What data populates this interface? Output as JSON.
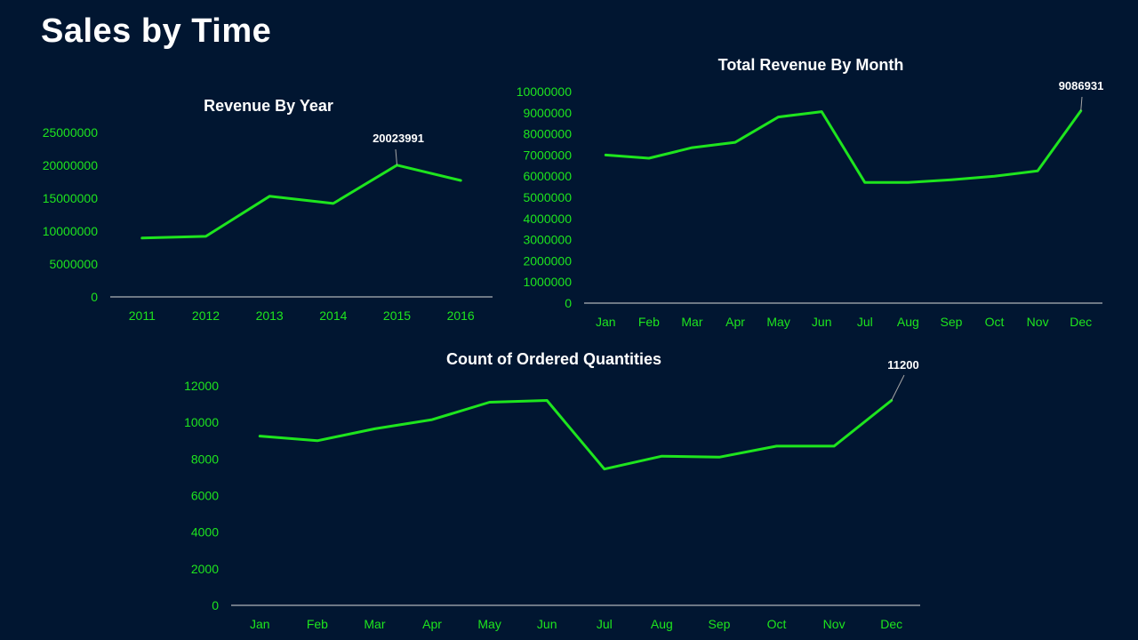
{
  "page": {
    "title": "Sales by Time"
  },
  "colors": {
    "background": "#011631",
    "line": "#1ee51e",
    "axis_text": "#1ee51e",
    "axis_line": "#d9d9d9",
    "title_text": "#ffffff",
    "leader_line": "#a6a6a6"
  },
  "chart_data": [
    {
      "type": "line",
      "title": "Revenue By Year",
      "xlabel": "",
      "ylabel": "",
      "categories": [
        "2011",
        "2012",
        "2013",
        "2014",
        "2015",
        "2016"
      ],
      "series": [
        {
          "name": "Revenue",
          "values": [
            8950000,
            9200000,
            15300000,
            14200000,
            20023991,
            17700000
          ]
        }
      ],
      "ylim": [
        0,
        25000000
      ],
      "yticks": [
        "0",
        "5000000",
        "10000000",
        "15000000",
        "20000000",
        "25000000"
      ],
      "grid": false,
      "annotations": [
        {
          "category": "2015",
          "text": "20023991"
        }
      ]
    },
    {
      "type": "line",
      "title": "Total Revenue By Month",
      "xlabel": "",
      "ylabel": "",
      "categories": [
        "Jan",
        "Feb",
        "Mar",
        "Apr",
        "May",
        "Jun",
        "Jul",
        "Aug",
        "Sep",
        "Oct",
        "Nov",
        "Dec"
      ],
      "series": [
        {
          "name": "Revenue",
          "values": [
            7000000,
            6850000,
            7350000,
            7600000,
            8800000,
            9050000,
            5700000,
            5700000,
            5830000,
            6000000,
            6250000,
            9086931
          ]
        }
      ],
      "ylim": [
        0,
        10000000
      ],
      "yticks": [
        "0",
        "1000000",
        "2000000",
        "3000000",
        "4000000",
        "5000000",
        "6000000",
        "7000000",
        "8000000",
        "9000000",
        "10000000"
      ],
      "grid": false,
      "annotations": [
        {
          "category": "Dec",
          "text": "9086931"
        }
      ]
    },
    {
      "type": "line",
      "title": "Count of Ordered Quantities",
      "xlabel": "",
      "ylabel": "",
      "categories": [
        "Jan",
        "Feb",
        "Mar",
        "Apr",
        "May",
        "Jun",
        "Jul",
        "Aug",
        "Sep",
        "Oct",
        "Nov",
        "Dec"
      ],
      "series": [
        {
          "name": "Quantity",
          "values": [
            9250,
            9000,
            9650,
            10150,
            11100,
            11200,
            7450,
            8150,
            8100,
            8700,
            8700,
            11200
          ]
        }
      ],
      "ylim": [
        0,
        12000
      ],
      "yticks": [
        "0",
        "2000",
        "4000",
        "6000",
        "8000",
        "10000",
        "12000"
      ],
      "grid": false,
      "annotations": [
        {
          "category": "Dec",
          "text": "11200"
        }
      ]
    }
  ]
}
